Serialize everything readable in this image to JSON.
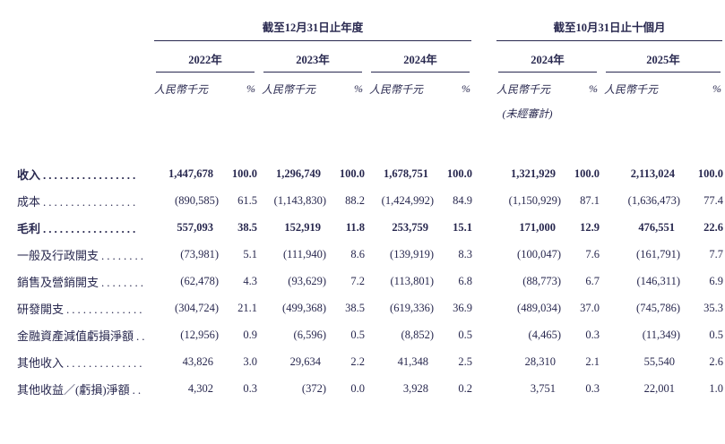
{
  "table": {
    "period_groups": [
      {
        "title": "截至12月31日止年度"
      },
      {
        "title": "截至10月31日止十個月"
      }
    ],
    "year_cols": [
      "2022年",
      "2023年",
      "2024年",
      "2024年",
      "2025年"
    ],
    "unit_label": "人民幣千元",
    "pct_label": "%",
    "unaudited_note": "(未經審計)",
    "rows": [
      {
        "label": "收入",
        "leader": ".................",
        "bold": true,
        "cells": [
          "1,447,678",
          "100.0",
          "1,296,749",
          "100.0",
          "1,678,751",
          "100.0",
          "1,321,929",
          "100.0",
          "2,113,024",
          "100.0"
        ]
      },
      {
        "label": "成本",
        "leader": ".................",
        "bold": false,
        "cells": [
          "(890,585)",
          "61.5",
          "(1,143,830)",
          "88.2",
          "(1,424,992)",
          "84.9",
          "(1,150,929)",
          "87.1",
          "(1,636,473)",
          "77.4"
        ]
      },
      {
        "label": "毛利",
        "leader": ".................",
        "bold": true,
        "cells": [
          "557,093",
          "38.5",
          "152,919",
          "11.8",
          "253,759",
          "15.1",
          "171,000",
          "12.9",
          "476,551",
          "22.6"
        ]
      },
      {
        "label": "一般及行政開支",
        "leader": "........",
        "bold": false,
        "cells": [
          "(73,981)",
          "5.1",
          "(111,940)",
          "8.6",
          "(139,919)",
          "8.3",
          "(100,047)",
          "7.6",
          "(161,791)",
          "7.7"
        ]
      },
      {
        "label": "銷售及營銷開支",
        "leader": "........",
        "bold": false,
        "cells": [
          "(62,478)",
          "4.3",
          "(93,629)",
          "7.2",
          "(113,801)",
          "6.8",
          "(88,773)",
          "6.7",
          "(146,311)",
          "6.9"
        ]
      },
      {
        "label": "研發開支",
        "leader": "..............",
        "bold": false,
        "cells": [
          "(304,724)",
          "21.1",
          "(499,368)",
          "38.5",
          "(619,336)",
          "36.9",
          "(489,034)",
          "37.0",
          "(745,786)",
          "35.3"
        ]
      },
      {
        "label": "金融資產減值虧損淨額",
        "leader": "..",
        "bold": false,
        "cells": [
          "(12,956)",
          "0.9",
          "(6,596)",
          "0.5",
          "(8,852)",
          "0.5",
          "(4,465)",
          "0.3",
          "(11,349)",
          "0.5"
        ]
      },
      {
        "label": "其他收入",
        "leader": "..............",
        "bold": false,
        "cells": [
          "43,826",
          "3.0",
          "29,634",
          "2.2",
          "41,348",
          "2.5",
          "28,310",
          "2.1",
          "55,540",
          "2.6"
        ]
      },
      {
        "label": "其他收益／(虧損)淨額",
        "leader": "..",
        "bold": false,
        "cells": [
          "4,302",
          "0.3",
          "(372)",
          "0.0",
          "3,928",
          "0.2",
          "3,751",
          "0.3",
          "22,001",
          "1.0"
        ]
      }
    ]
  },
  "colors": {
    "text": "#28284f",
    "background": "#ffffff"
  }
}
